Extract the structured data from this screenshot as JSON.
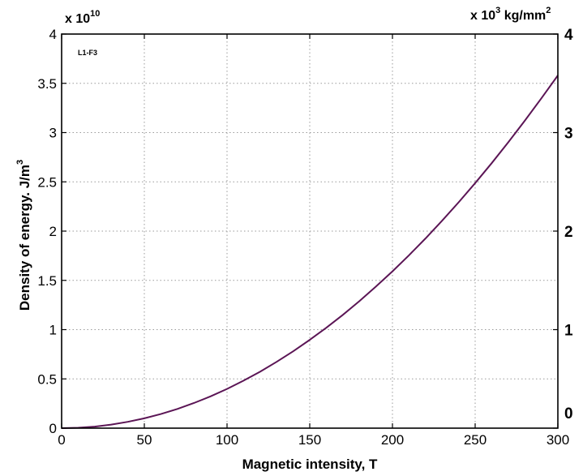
{
  "chart_data": {
    "type": "line",
    "xlabel": "Magnetic intensity, T",
    "ylabel_text": "Density of energy. J/m",
    "ylabel_sup": "3",
    "y_multiplier_base": "x 10",
    "y_multiplier_exp": "10",
    "y2_unit_prefix": "x 10",
    "y2_unit_exp": "3",
    "y2_unit_suffix": " kg/mm",
    "y2_unit_sup": "2",
    "annotation": "L1-F3",
    "xlim": [
      0,
      300
    ],
    "ylim": [
      0,
      4
    ],
    "y2lim": [
      0,
      4
    ],
    "x_ticks": [
      "0",
      "50",
      "100",
      "150",
      "200",
      "250",
      "300"
    ],
    "y_ticks": [
      "0",
      "0.5",
      "1",
      "1.5",
      "2",
      "2.5",
      "3",
      "3.5",
      "4"
    ],
    "y2_ticks": [
      "0",
      "1",
      "2",
      "3",
      "4"
    ],
    "grid": true,
    "series": [
      {
        "color": "#5b1555",
        "x": [
          0,
          10,
          20,
          30,
          40,
          50,
          60,
          70,
          80,
          90,
          100,
          110,
          120,
          130,
          140,
          150,
          160,
          170,
          180,
          190,
          200,
          210,
          220,
          230,
          240,
          250,
          260,
          270,
          280,
          290,
          300
        ],
        "y": [
          0,
          0.004,
          0.016,
          0.036,
          0.064,
          0.1,
          0.143,
          0.195,
          0.255,
          0.323,
          0.398,
          0.482,
          0.573,
          0.673,
          0.78,
          0.896,
          1.019,
          1.15,
          1.289,
          1.437,
          1.592,
          1.755,
          1.926,
          2.105,
          2.292,
          2.487,
          2.69,
          2.901,
          3.12,
          3.347,
          3.58
        ]
      }
    ]
  }
}
